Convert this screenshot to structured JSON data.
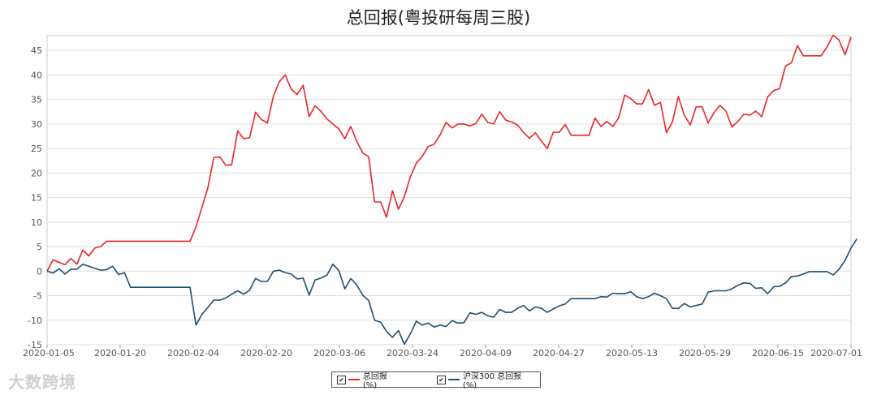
{
  "chart_data": {
    "type": "line",
    "title": "总回报(粤投研每周三股)",
    "x_ticks": [
      "2020-01-05",
      "2020-01-20",
      "2020-02-04",
      "2020-02-20",
      "2020-03-06",
      "2020-03-24",
      "2020-04-09",
      "2020-04-27",
      "2020-05-13",
      "2020-05-29",
      "2020-06-15",
      "2020-07-01"
    ],
    "y_ticks": [
      "-15",
      "-10",
      "-5",
      "0",
      "5",
      "10",
      "15",
      "20",
      "25",
      "30",
      "35",
      "40",
      "45"
    ],
    "ylim": [
      -15,
      48
    ],
    "grid": true,
    "legend_position": "bottom",
    "series": [
      {
        "name": "总回报(%)",
        "color": "#e8262b",
        "values": [
          0,
          2.3,
          1.8,
          1.3,
          2.6,
          1.4,
          4.3,
          3.1,
          4.7,
          5.0,
          6.1,
          6.1,
          6.1,
          6.1,
          6.1,
          6.1,
          6.1,
          6.1,
          6.1,
          6.1,
          6.1,
          6.1,
          6.1,
          6.1,
          6.1,
          9.0,
          13.0,
          17.0,
          23.2,
          23.3,
          21.6,
          21.7,
          28.6,
          27.0,
          27.2,
          32.4,
          30.9,
          30.2,
          35.7,
          38.6,
          40.0,
          37.1,
          36.0,
          37.9,
          31.5,
          33.7,
          32.6,
          31.0,
          30.0,
          29.0,
          27.0,
          29.5,
          26.5,
          24.1,
          23.3,
          14.1,
          14.1,
          11.0,
          16.4,
          12.6,
          15.2,
          19.2,
          22.0,
          23.4,
          25.4,
          25.9,
          27.8,
          30.3,
          29.2,
          30.0,
          30.0,
          29.6,
          30.1,
          32.0,
          30.3,
          30.0,
          32.5,
          30.8,
          30.4,
          29.8,
          28.3,
          27.1,
          28.2,
          26.5,
          25.0,
          28.3,
          28.3,
          29.9,
          27.7,
          27.7,
          27.7,
          27.7,
          31.2,
          29.5,
          30.5,
          29.5,
          31.3,
          35.9,
          35.2,
          34.1,
          34.1,
          37.0,
          33.8,
          34.4,
          28.2,
          30.4,
          35.6,
          31.8,
          29.8,
          33.5,
          33.5,
          30.2,
          32.3,
          33.8,
          32.6,
          29.4,
          30.5,
          32.0,
          31.8,
          32.6,
          31.5,
          35.5,
          36.8,
          37.2,
          41.8,
          42.5,
          46.0,
          43.9,
          43.9,
          43.9,
          43.9,
          45.8,
          48.1,
          47.1,
          44.1,
          47.7
        ]
      },
      {
        "name": "沪深300 总回报(%)",
        "color": "#1d4f73",
        "values": [
          0,
          -0.4,
          0.5,
          -0.6,
          0.4,
          0.4,
          1.4,
          1.0,
          0.6,
          0.2,
          0.3,
          1.0,
          -0.7,
          -0.3,
          -3.3,
          -3.3,
          -3.3,
          -3.3,
          -3.3,
          -3.3,
          -3.3,
          -3.3,
          -3.3,
          -3.3,
          -3.3,
          -11.0,
          -8.8,
          -7.4,
          -5.9,
          -5.9,
          -5.5,
          -4.7,
          -4.0,
          -4.7,
          -3.9,
          -1.5,
          -2.1,
          -2.1,
          0.0,
          0.2,
          -0.3,
          -0.6,
          -1.6,
          -1.4,
          -4.9,
          -1.8,
          -1.4,
          -0.8,
          1.4,
          0.1,
          -3.6,
          -1.5,
          -2.8,
          -4.9,
          -6.0,
          -10.0,
          -10.4,
          -12.3,
          -13.5,
          -12.1,
          -14.9,
          -12.8,
          -10.2,
          -11.0,
          -10.6,
          -11.4,
          -11.0,
          -11.3,
          -10.1,
          -10.6,
          -10.5,
          -8.5,
          -8.8,
          -8.4,
          -9.1,
          -9.4,
          -7.8,
          -8.4,
          -8.4,
          -7.6,
          -7.0,
          -8.1,
          -7.3,
          -7.6,
          -8.4,
          -7.7,
          -7.1,
          -6.7,
          -5.6,
          -5.6,
          -5.6,
          -5.6,
          -5.6,
          -5.2,
          -5.3,
          -4.5,
          -4.6,
          -4.6,
          -4.2,
          -5.2,
          -5.6,
          -5.2,
          -4.5,
          -5.0,
          -5.6,
          -7.6,
          -7.6,
          -6.6,
          -7.3,
          -7.0,
          -6.7,
          -4.3,
          -4.0,
          -4.0,
          -4.0,
          -3.6,
          -2.9,
          -2.4,
          -2.5,
          -3.5,
          -3.4,
          -4.6,
          -3.2,
          -3.1,
          -2.4,
          -1.1,
          -1.0,
          -0.6,
          -0.1,
          -0.1,
          -0.1,
          -0.1,
          -0.8,
          0.4,
          2.2,
          4.7,
          6.6
        ]
      }
    ]
  },
  "legend": [
    {
      "label": "总回报(%)",
      "check": "✔"
    },
    {
      "label": "沪深300 总回报(%)",
      "check": "✔"
    }
  ],
  "watermark": "大数跨境"
}
